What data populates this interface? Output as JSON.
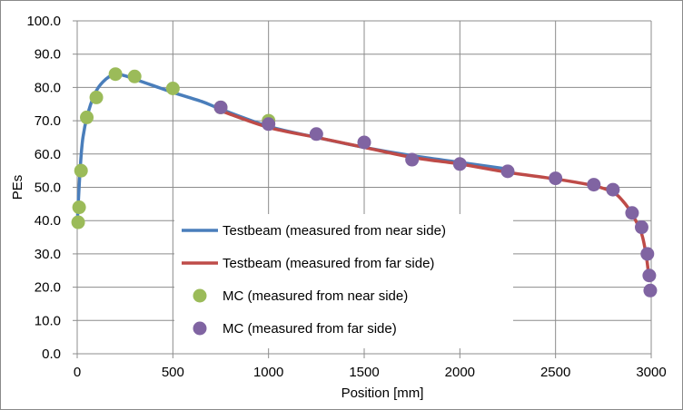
{
  "chart_data": {
    "type": "line",
    "title": "",
    "xlabel": "Position [mm]",
    "ylabel": "PEs",
    "xlim": [
      0,
      3000
    ],
    "ylim": [
      0,
      100
    ],
    "xticks": [
      0,
      500,
      1000,
      1500,
      2000,
      2500,
      3000
    ],
    "yticks": [
      "0.0",
      "10.0",
      "20.0",
      "30.0",
      "40.0",
      "50.0",
      "60.0",
      "70.0",
      "80.0",
      "90.0",
      "100.0"
    ],
    "grid": true,
    "legend_position": "center-left",
    "series": [
      {
        "name": "Testbeam (measured from near side)",
        "kind": "line",
        "color": "#4a7ebb",
        "x": [
          0,
          15,
          30,
          60,
          100,
          150,
          200,
          250,
          300,
          400,
          500,
          650,
          750,
          1000,
          1250,
          1500,
          1750,
          2000,
          2250
        ],
        "y": [
          39,
          55,
          65,
          73,
          79,
          82.5,
          84,
          83.5,
          82.5,
          80.5,
          78.5,
          75.8,
          73.5,
          68.3,
          65,
          62,
          59.5,
          57.5,
          55.5
        ]
      },
      {
        "name": "Testbeam (measured from far side)",
        "kind": "line",
        "color": "#be4b48",
        "x": [
          750,
          1000,
          1250,
          1500,
          1750,
          2000,
          2250,
          2500,
          2700,
          2800,
          2850,
          2900,
          2950,
          2975,
          2990
        ],
        "y": [
          73,
          68,
          65,
          62,
          59,
          57,
          54.5,
          52.5,
          50.5,
          48.5,
          46,
          42,
          36,
          29,
          22
        ]
      },
      {
        "name": "MC (measured from near side)",
        "kind": "scatter",
        "color": "#9bbb59",
        "x": [
          5,
          10,
          20,
          50,
          100,
          200,
          300,
          500,
          750,
          1000
        ],
        "y": [
          39.5,
          44,
          55,
          71,
          77,
          84,
          83.3,
          79.7,
          74,
          70
        ]
      },
      {
        "name": "MC (measured from far side)",
        "kind": "scatter",
        "color": "#8064a2",
        "x": [
          750,
          1000,
          1250,
          1500,
          1750,
          2000,
          2250,
          2500,
          2700,
          2800,
          2900,
          2950,
          2980,
          2990,
          2995
        ],
        "y": [
          74,
          69,
          66,
          63.5,
          58.3,
          57,
          54.8,
          52.7,
          50.8,
          49.3,
          42.3,
          38,
          30,
          23.5,
          19
        ]
      }
    ]
  }
}
